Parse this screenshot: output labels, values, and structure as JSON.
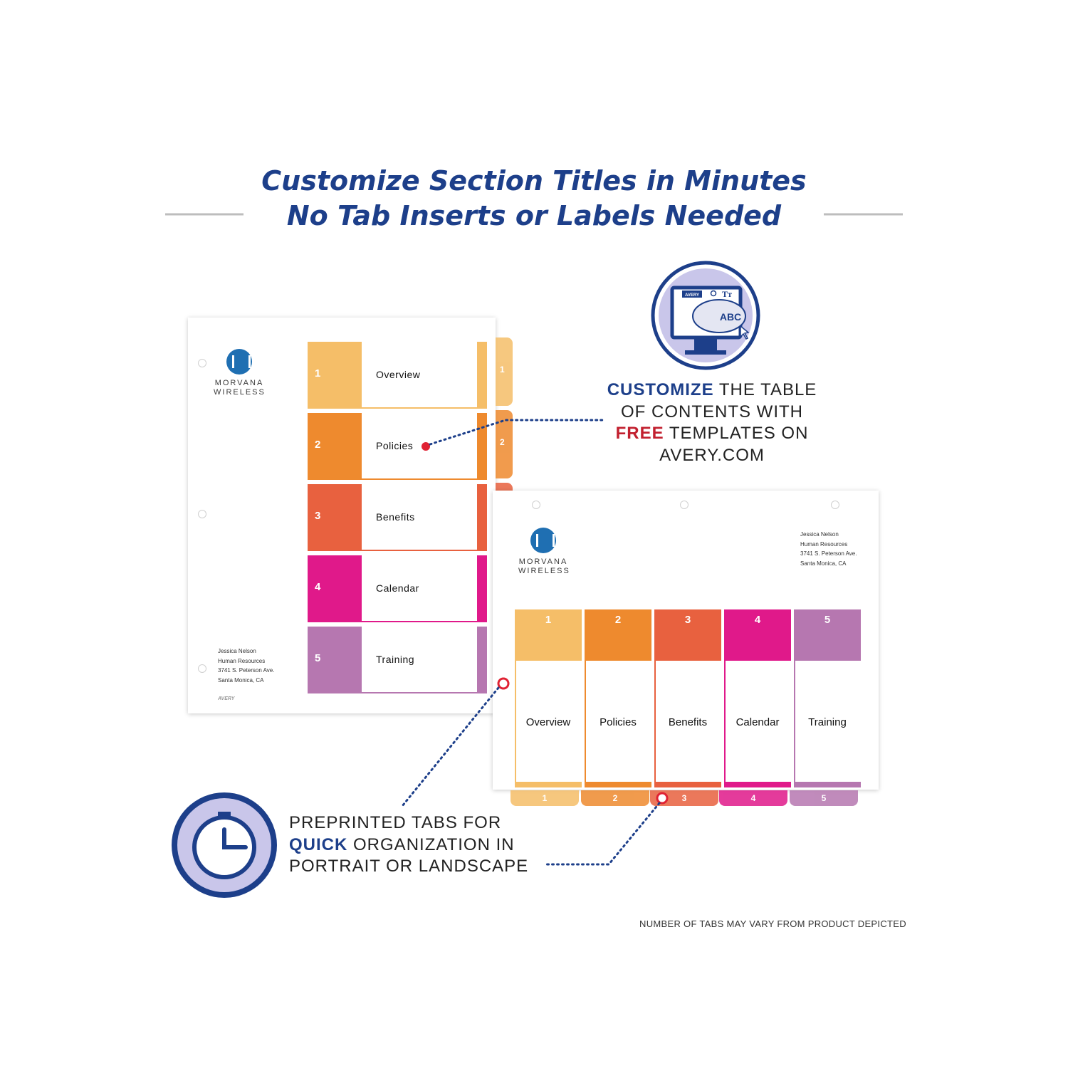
{
  "title": {
    "line1": "Customize Section Titles in Minutes",
    "line2": "No Tab Inserts or Labels Needed"
  },
  "portrait_sheet": {
    "logo": {
      "line1": "MORVANA",
      "line2": "WIRELESS"
    },
    "address": [
      "Jessica Nelson",
      "Human Resources",
      "3741 S. Peterson Ave.",
      "Santa Monica, CA"
    ],
    "brand_mark": "AVERY",
    "sections": [
      {
        "number": "1",
        "label": "Overview",
        "color": "#f5be68"
      },
      {
        "number": "2",
        "label": "Policies",
        "color": "#ee8a2e"
      },
      {
        "number": "3",
        "label": "Benefits",
        "color": "#e8613f"
      },
      {
        "number": "4",
        "label": "Calendar",
        "color": "#e0198a"
      },
      {
        "number": "5",
        "label": "Training",
        "color": "#b677b0"
      }
    ]
  },
  "landscape_sheet": {
    "logo": {
      "line1": "MORVANA",
      "line2": "WIRELESS"
    },
    "address": [
      "Jessica Nelson",
      "Human Resources",
      "3741 S. Peterson Ave.",
      "Santa Monica, CA"
    ],
    "sections": [
      {
        "number": "1",
        "label": "Overview",
        "color": "#f5be68"
      },
      {
        "number": "2",
        "label": "Policies",
        "color": "#ee8a2e"
      },
      {
        "number": "3",
        "label": "Benefits",
        "color": "#e8613f"
      },
      {
        "number": "4",
        "label": "Calendar",
        "color": "#e0198a"
      },
      {
        "number": "5",
        "label": "Training",
        "color": "#b677b0"
      }
    ]
  },
  "callout_customize": {
    "bold1": "CUSTOMIZE",
    "text1": " THE TABLE",
    "text2": "OF CONTENTS WITH",
    "bold2": "FREE",
    "text3": " TEMPLATES ON",
    "text4": "AVERY.COM"
  },
  "callout_tabs": {
    "text1": "PREPRINTED TABS FOR",
    "bold1": "QUICK",
    "text2": " ORGANIZATION IN",
    "text3": "PORTRAIT OR LANDSCAPE"
  },
  "monitor_icon": {
    "brand": "AVERY",
    "font_glyph": "Tт",
    "sample": "ABC"
  },
  "disclaimer": "NUMBER OF TABS MAY VARY FROM PRODUCT DEPICTED",
  "colors": {
    "navy": "#1d3f8a",
    "red": "#c2202f",
    "lavender": "#c9c6ea"
  },
  "icons": [
    "monitor-icon",
    "stopwatch-icon",
    "avery-logo-icon"
  ]
}
